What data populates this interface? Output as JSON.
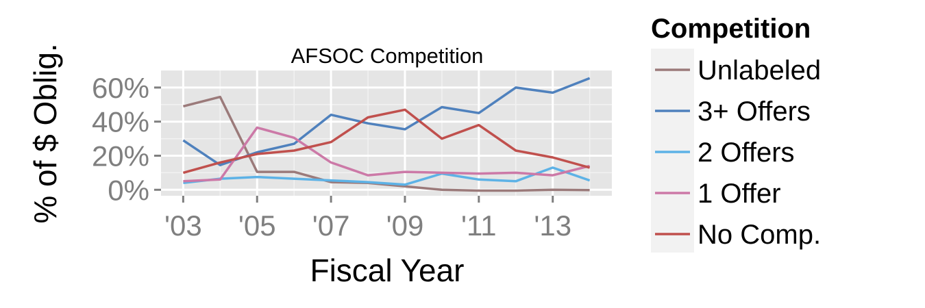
{
  "chart_data": {
    "type": "line",
    "title": "AFSOC Competition",
    "xlabel": "Fiscal Year",
    "ylabel": "% of $ Oblig.",
    "x": [
      2003,
      2004,
      2005,
      2006,
      2007,
      2008,
      2009,
      2010,
      2011,
      2012,
      2013,
      2014
    ],
    "x_ticks": [
      {
        "value": 2003,
        "label": "'03"
      },
      {
        "value": 2005,
        "label": "'05"
      },
      {
        "value": 2007,
        "label": "'07"
      },
      {
        "value": 2009,
        "label": "'09"
      },
      {
        "value": 2011,
        "label": "'11"
      },
      {
        "value": 2013,
        "label": "'13"
      }
    ],
    "xlim": [
      2002.4,
      2014.6
    ],
    "y_ticks": [
      {
        "value": 0,
        "label": "0%"
      },
      {
        "value": 20,
        "label": "20%"
      },
      {
        "value": 40,
        "label": "40%"
      },
      {
        "value": 60,
        "label": "60%"
      }
    ],
    "ylim": [
      -3.5,
      70
    ],
    "grid": true,
    "legend": {
      "title": "Competition",
      "position": "right"
    },
    "series": [
      {
        "name": "Unlabeled",
        "color": "#9b7a7a",
        "values": [
          49,
          54.5,
          10.5,
          10.5,
          4.5,
          4,
          2,
          0,
          -0.5,
          -0.5,
          0,
          -0.2
        ]
      },
      {
        "name": "3+ Offers",
        "color": "#4f81bd",
        "values": [
          29,
          14.5,
          22,
          27,
          44,
          39,
          35.5,
          48.5,
          45,
          60,
          57,
          65.5
        ]
      },
      {
        "name": "2 Offers",
        "color": "#5db2e6",
        "values": [
          4,
          6.5,
          7.5,
          6.5,
          5.5,
          4.5,
          3,
          9.5,
          6,
          5,
          13,
          5.5
        ]
      },
      {
        "name": "1 Offer",
        "color": "#cc79a7",
        "values": [
          5,
          6,
          36.5,
          30.5,
          16,
          8.5,
          10.5,
          10,
          9.5,
          10,
          8.5,
          14
        ]
      },
      {
        "name": "No Comp.",
        "color": "#c0504d",
        "values": [
          10,
          16,
          21,
          23,
          28,
          42.5,
          47,
          30,
          38,
          23,
          19,
          13
        ]
      }
    ]
  }
}
